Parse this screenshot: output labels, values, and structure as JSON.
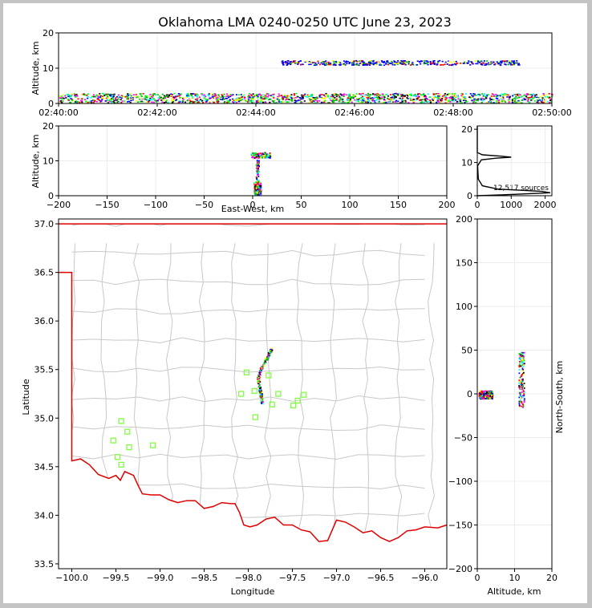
{
  "figure": {
    "title": "Oklahoma LMA 0240-0250 UTC June 23, 2023"
  },
  "colors": {
    "frame": "#c4c4c4",
    "state_border": "#e00000",
    "county_lines": "#c8c8c8",
    "stations": "#80ff40",
    "hist_line": "#000000"
  },
  "chart_data": [
    {
      "id": "time-height",
      "type": "scatter",
      "ylabel": "Altitude, km",
      "xlim": [
        0,
        600
      ],
      "ylim": [
        0,
        20
      ],
      "xticks": [
        "02:40:00",
        "02:42:00",
        "02:44:00",
        "02:46:00",
        "02:48:00",
        "02:50:00"
      ],
      "yticks": [
        0,
        10,
        20
      ],
      "bands": [
        {
          "t0": 0,
          "t1": 600,
          "alt0": 0.3,
          "alt1": 3.0,
          "count": 1500
        },
        {
          "t0": 270,
          "t1": 560,
          "alt0": 11.0,
          "alt1": 12.3,
          "count": 450
        }
      ]
    },
    {
      "id": "east-west-altitude",
      "type": "scatter",
      "xlabel": "East-West, km",
      "ylabel": "Altitude, km",
      "xlim": [
        -200,
        200
      ],
      "ylim": [
        0,
        20
      ],
      "xticks": [
        -200,
        -150,
        -100,
        -50,
        0,
        50,
        100,
        150,
        200
      ],
      "yticks": [
        0,
        10,
        20
      ],
      "clusters": [
        {
          "x0": 1,
          "x1": 8,
          "y0": 0.3,
          "y1": 4.0,
          "count": 220
        },
        {
          "x0": 3,
          "x1": 6,
          "y0": 4.0,
          "y1": 11.0,
          "count": 60
        },
        {
          "x0": -2,
          "x1": 18,
          "y0": 11.0,
          "y1": 12.5,
          "count": 110
        }
      ]
    },
    {
      "id": "altitude-histogram",
      "type": "line",
      "xlim": [
        0,
        2200
      ],
      "ylim": [
        0,
        21
      ],
      "xticks": [
        0,
        1000,
        2000
      ],
      "yticks": [
        0,
        10,
        20
      ],
      "annotation": "12,517 sources",
      "profile": [
        {
          "count": 0,
          "alt": 0
        },
        {
          "count": 800,
          "alt": 0.3
        },
        {
          "count": 2150,
          "alt": 0.9
        },
        {
          "count": 1900,
          "alt": 1.3
        },
        {
          "count": 600,
          "alt": 2.0
        },
        {
          "count": 150,
          "alt": 3.0
        },
        {
          "count": 30,
          "alt": 5.0
        },
        {
          "count": 10,
          "alt": 9.0
        },
        {
          "count": 120,
          "alt": 10.8
        },
        {
          "count": 550,
          "alt": 11.3
        },
        {
          "count": 1000,
          "alt": 11.6
        },
        {
          "count": 700,
          "alt": 11.9
        },
        {
          "count": 150,
          "alt": 12.3
        },
        {
          "count": 0,
          "alt": 13
        },
        {
          "count": 0,
          "alt": 21
        }
      ]
    },
    {
      "id": "plan-view",
      "type": "scatter",
      "xlabel": "Longitude",
      "ylabel": "Latitude",
      "xlim": [
        -100.15,
        -95.75
      ],
      "ylim": [
        33.45,
        37.05
      ],
      "xticks": [
        -100.0,
        -99.5,
        -99.0,
        -98.5,
        -98.0,
        -97.5,
        -97.0,
        -96.5,
        -96.0
      ],
      "yticks": [
        33.5,
        34.0,
        34.5,
        35.0,
        35.5,
        36.0,
        36.5,
        37.0
      ],
      "source_track": [
        {
          "lon": -97.74,
          "lat": 35.72
        },
        {
          "lon": -97.77,
          "lat": 35.66
        },
        {
          "lon": -97.82,
          "lat": 35.58
        },
        {
          "lon": -97.87,
          "lat": 35.49
        },
        {
          "lon": -97.89,
          "lat": 35.42
        },
        {
          "lon": -97.88,
          "lat": 35.33
        },
        {
          "lon": -97.86,
          "lat": 35.25
        },
        {
          "lon": -97.85,
          "lat": 35.16
        }
      ],
      "stations": [
        {
          "lon": -98.02,
          "lat": 35.47
        },
        {
          "lon": -97.77,
          "lat": 35.44
        },
        {
          "lon": -98.08,
          "lat": 35.25
        },
        {
          "lon": -97.93,
          "lat": 35.28
        },
        {
          "lon": -97.66,
          "lat": 35.25
        },
        {
          "lon": -97.37,
          "lat": 35.24
        },
        {
          "lon": -97.44,
          "lat": 35.18
        },
        {
          "lon": -97.73,
          "lat": 35.14
        },
        {
          "lon": -97.49,
          "lat": 35.13
        },
        {
          "lon": -97.92,
          "lat": 35.01
        },
        {
          "lon": -99.44,
          "lat": 34.97
        },
        {
          "lon": -99.37,
          "lat": 34.86
        },
        {
          "lon": -99.53,
          "lat": 34.77
        },
        {
          "lon": -99.35,
          "lat": 34.7
        },
        {
          "lon": -99.08,
          "lat": 34.72
        },
        {
          "lon": -99.48,
          "lat": 34.6
        },
        {
          "lon": -99.44,
          "lat": 34.52
        }
      ],
      "state_border": [
        [
          -100.15,
          37.0
        ],
        [
          -95.75,
          37.0
        ],
        null,
        [
          -100.15,
          36.5
        ],
        [
          -100.0,
          36.5
        ],
        [
          -100.0,
          34.56
        ],
        [
          -99.9,
          34.58
        ],
        [
          -99.8,
          34.52
        ],
        [
          -99.7,
          34.42
        ],
        [
          -99.58,
          34.38
        ],
        [
          -99.5,
          34.41
        ],
        [
          -99.45,
          34.36
        ],
        [
          -99.4,
          34.45
        ],
        [
          -99.3,
          34.41
        ],
        [
          -99.25,
          34.31
        ],
        [
          -99.2,
          34.22
        ],
        [
          -99.1,
          34.21
        ],
        [
          -99.0,
          34.21
        ],
        [
          -98.9,
          34.16
        ],
        [
          -98.8,
          34.13
        ],
        [
          -98.7,
          34.15
        ],
        [
          -98.6,
          34.15
        ],
        [
          -98.5,
          34.07
        ],
        [
          -98.4,
          34.09
        ],
        [
          -98.3,
          34.13
        ],
        [
          -98.2,
          34.12
        ],
        [
          -98.15,
          34.12
        ],
        [
          -98.1,
          34.03
        ],
        [
          -98.05,
          33.9
        ],
        [
          -97.98,
          33.88
        ],
        [
          -97.9,
          33.9
        ],
        [
          -97.8,
          33.96
        ],
        [
          -97.7,
          33.98
        ],
        [
          -97.6,
          33.9
        ],
        [
          -97.5,
          33.9
        ],
        [
          -97.4,
          33.85
        ],
        [
          -97.3,
          33.83
        ],
        [
          -97.2,
          33.73
        ],
        [
          -97.1,
          33.74
        ],
        [
          -97.0,
          33.95
        ],
        [
          -96.9,
          33.93
        ],
        [
          -96.8,
          33.88
        ],
        [
          -96.7,
          33.82
        ],
        [
          -96.6,
          33.84
        ],
        [
          -96.5,
          33.77
        ],
        [
          -96.4,
          33.73
        ],
        [
          -96.3,
          33.77
        ],
        [
          -96.2,
          33.84
        ],
        [
          -96.1,
          33.85
        ],
        [
          -96.0,
          33.88
        ],
        [
          -95.85,
          33.87
        ],
        [
          -95.75,
          33.9
        ]
      ]
    },
    {
      "id": "altitude-north-south",
      "type": "scatter",
      "xlabel": "Altitude, km",
      "ylabel": "North-South, km",
      "xlim": [
        0,
        20
      ],
      "ylim": [
        -200,
        200
      ],
      "xticks": [
        0,
        10,
        20
      ],
      "yticks": [
        -200,
        -150,
        -100,
        -50,
        0,
        50,
        100,
        150,
        200
      ],
      "clusters": [
        {
          "x0": 0.3,
          "x1": 4.0,
          "y0": -5,
          "y1": 4,
          "count": 260
        },
        {
          "x0": 11.0,
          "x1": 12.5,
          "y0": -15,
          "y1": 48,
          "count": 140
        }
      ]
    }
  ]
}
